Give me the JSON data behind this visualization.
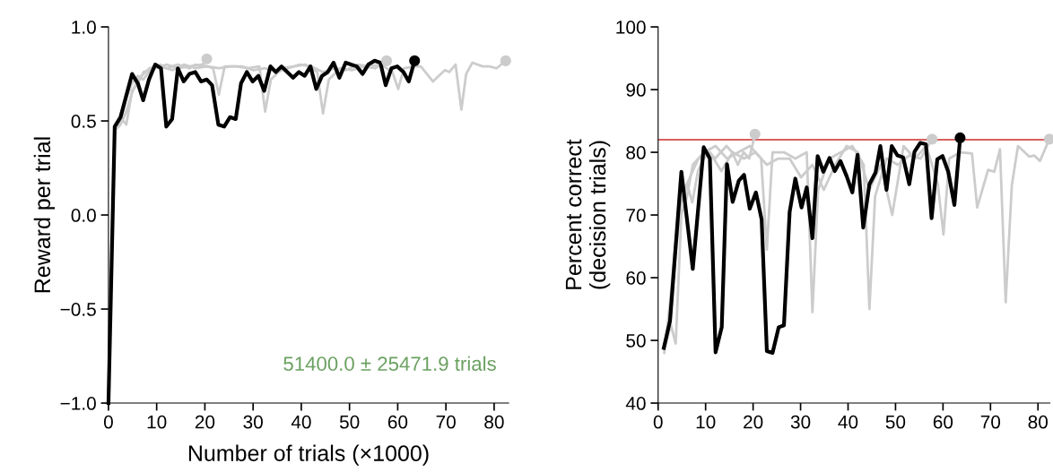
{
  "chart_data": [
    {
      "type": "line",
      "xlabel": "Number of trials (×1000)",
      "ylabel": "Reward per trial",
      "xlim": [
        0,
        83
      ],
      "ylim": [
        -1,
        1
      ],
      "xticks": [
        0,
        10,
        20,
        30,
        40,
        50,
        60,
        70,
        80
      ],
      "yticks": [
        {
          "value": -1,
          "label": "−1.0"
        },
        {
          "value": -0.5,
          "label": "−0.5"
        },
        {
          "value": 0,
          "label": "0.0"
        },
        {
          "value": 0.5,
          "label": "0.5"
        },
        {
          "value": 1,
          "label": "1.0"
        }
      ],
      "grid": false,
      "legend": false,
      "annotations": [
        "51400.0 ± 25471.9 trials"
      ],
      "series": [
        {
          "color": "#cccccc",
          "x": [
            1.3,
            2.5,
            3.7,
            4.9,
            6.1,
            7.2,
            8.4,
            9.6,
            10.8,
            12,
            13.2,
            14.4,
            15.6,
            16.8,
            18,
            19.2,
            20.4
          ],
          "values": [
            0.46,
            0.5,
            0.62,
            0.7,
            0.74,
            0.72,
            0.76,
            0.78,
            0.8,
            0.78,
            0.79,
            0.8,
            0.79,
            0.78,
            0.8,
            0.79,
            0.83
          ]
        },
        {
          "color": "#cccccc",
          "x": [
            1.3,
            2.5,
            3.7,
            4.9,
            6.1,
            7.3,
            9.7,
            12.1,
            14.5,
            16.9,
            19.3,
            21.7,
            22.9,
            24.1,
            26.5,
            28.9,
            31.3,
            32.5,
            33.7,
            36.1,
            38.5,
            40.9,
            43.3,
            44.5,
            45.7,
            48.1,
            50.5,
            52.9,
            55.3,
            57.7
          ],
          "values": [
            0.47,
            0.52,
            0.48,
            0.66,
            0.7,
            0.76,
            0.78,
            0.8,
            0.78,
            0.79,
            0.8,
            0.78,
            0.64,
            0.79,
            0.79,
            0.78,
            0.79,
            0.55,
            0.72,
            0.78,
            0.79,
            0.8,
            0.76,
            0.54,
            0.72,
            0.78,
            0.77,
            0.79,
            0.78,
            0.82
          ]
        },
        {
          "color": "#cccccc",
          "x": [
            1.3,
            2.5,
            3.7,
            4.9,
            6.1,
            8.5,
            10.9,
            13.3,
            15.7,
            18.1,
            20.5,
            22.9,
            25.3,
            27.7,
            30.1,
            32.5,
            34.9,
            37.3,
            39.7,
            42.1,
            44.5,
            46.9,
            49.3,
            51.7,
            54.1,
            56.5,
            58.9,
            60.1,
            61.3,
            63.7,
            64.8,
            67.3,
            69.8,
            70.7,
            72.0,
            73.2,
            74.2,
            75.5,
            77.6,
            79.0,
            80.5,
            82.4
          ],
          "values": [
            0.45,
            0.48,
            0.55,
            0.65,
            0.72,
            0.78,
            0.79,
            0.77,
            0.8,
            0.78,
            0.79,
            0.78,
            0.79,
            0.79,
            0.77,
            0.78,
            0.76,
            0.78,
            0.8,
            0.79,
            0.76,
            0.78,
            0.77,
            0.8,
            0.79,
            0.8,
            0.76,
            0.67,
            0.78,
            0.79,
            0.79,
            0.71,
            0.77,
            0.76,
            0.8,
            0.56,
            0.75,
            0.81,
            0.79,
            0.79,
            0.78,
            0.82
          ]
        },
        {
          "color": "#000000",
          "x": [
            0,
            1.3,
            2.5,
            4.9,
            6.1,
            7.2,
            8.4,
            9.7,
            10.9,
            12.0,
            13.2,
            14.4,
            15.6,
            16.8,
            18.0,
            19.2,
            20.4,
            21.5,
            22.8,
            24.0,
            25.2,
            26.4,
            27.5,
            28.7,
            29.9,
            31.1,
            32.3,
            33.6,
            34.7,
            35.9,
            37.1,
            38.3,
            39.5,
            40.7,
            41.9,
            43.1,
            44.3,
            45.5,
            46.7,
            47.9,
            49.2,
            50.3,
            51.5,
            52.7,
            53.9,
            55.2,
            56.4,
            57.5,
            58.7,
            59.9,
            61.2,
            62.3,
            63.5
          ],
          "values": [
            -1,
            0.47,
            0.52,
            0.75,
            0.7,
            0.61,
            0.72,
            0.8,
            0.78,
            0.47,
            0.51,
            0.78,
            0.71,
            0.75,
            0.76,
            0.71,
            0.72,
            0.69,
            0.48,
            0.47,
            0.52,
            0.51,
            0.7,
            0.76,
            0.71,
            0.74,
            0.66,
            0.79,
            0.76,
            0.79,
            0.76,
            0.73,
            0.76,
            0.74,
            0.79,
            0.67,
            0.74,
            0.76,
            0.81,
            0.73,
            0.81,
            0.8,
            0.79,
            0.75,
            0.8,
            0.82,
            0.81,
            0.69,
            0.78,
            0.79,
            0.76,
            0.71,
            0.82
          ]
        },
        {
          "type": "scatter",
          "color": "#cccccc",
          "x": [
            20.4,
            57.7,
            82.4
          ],
          "values": [
            0.83,
            0.82,
            0.82
          ]
        },
        {
          "type": "scatter",
          "color": "#000000",
          "x": [
            63.5
          ],
          "values": [
            0.82
          ]
        }
      ]
    },
    {
      "type": "line",
      "ylabel": "Percent correct\n(decision trials)",
      "xlim": [
        0,
        82.5
      ],
      "ylim": [
        40,
        100
      ],
      "xticks": [
        0,
        10,
        20,
        30,
        40,
        50,
        60,
        70,
        80
      ],
      "yticks": [
        40,
        50,
        60,
        70,
        80,
        90,
        100
      ],
      "grid": false,
      "legend": false,
      "ref_lines": [
        {
          "axis": "y",
          "value": 82,
          "color": "#d9605f"
        }
      ],
      "series": [
        {
          "color": "#cccccc",
          "x": [
            1.3,
            2.5,
            3.7,
            4.9,
            6.1,
            7.2,
            8.4,
            9.6,
            10.8,
            12,
            13.2,
            14.4,
            15.6,
            16.8,
            18,
            19.2,
            20.4
          ],
          "values": [
            48.5,
            52,
            64,
            72,
            75,
            72,
            77,
            79,
            80,
            79,
            80,
            81,
            80,
            78,
            80,
            79,
            82.9
          ]
        },
        {
          "color": "#cccccc",
          "x": [
            1.3,
            2.5,
            3.7,
            4.9,
            6.1,
            7.3,
            9.7,
            12.1,
            14.5,
            16.9,
            19.3,
            21.7,
            22.9,
            24.1,
            26.5,
            28.9,
            31.3,
            32.5,
            33.7,
            36.1,
            38.5,
            40.9,
            43.3,
            44.5,
            45.7,
            48.1,
            50.5,
            52.9,
            55.3,
            57.7
          ],
          "values": [
            49,
            53,
            49.5,
            70,
            73,
            78,
            80,
            81,
            79,
            80,
            81,
            79,
            64.5,
            80,
            80,
            79,
            80,
            54.5,
            74,
            79,
            80,
            81,
            78,
            55,
            73,
            79,
            78,
            79.5,
            79,
            82.1
          ]
        },
        {
          "color": "#cccccc",
          "x": [
            1.3,
            2.5,
            3.7,
            4.9,
            6.1,
            8.5,
            10.9,
            13.3,
            15.7,
            18.1,
            20.5,
            22.9,
            25.3,
            27.7,
            30.1,
            32.5,
            34.9,
            37.3,
            39.7,
            42.1,
            44.5,
            46.9,
            49.3,
            51.7,
            54.1,
            56.5,
            58.9,
            60.1,
            61.3,
            63.7,
            66.1,
            67.2,
            69.5,
            70.8,
            72.0,
            73.2,
            74.5,
            75.8,
            78.2,
            79.2,
            80.4,
            82.4
          ],
          "values": [
            48,
            56,
            66,
            72,
            75,
            79,
            80,
            77,
            80,
            79,
            80,
            78,
            79,
            79,
            76,
            78,
            74,
            78,
            81,
            80,
            74,
            78,
            70,
            81,
            79,
            81,
            75,
            66.9,
            79,
            80,
            79.8,
            71.2,
            77.2,
            76.9,
            80.5,
            56.1,
            74.8,
            81.0,
            79.3,
            79.5,
            78.6,
            82.1
          ]
        },
        {
          "color": "#000000",
          "x": [
            1.2,
            2.5,
            4.9,
            7.3,
            9.6,
            10.9,
            12.1,
            13.4,
            14.5,
            15.7,
            17.0,
            18.1,
            19.3,
            20.6,
            21.8,
            22.9,
            24.1,
            25.4,
            26.5,
            27.7,
            28.9,
            30.2,
            31.3,
            32.5,
            33.6,
            34.8,
            36.1,
            37.2,
            38.4,
            39.7,
            40.9,
            42.0,
            43.2,
            44.5,
            45.8,
            46.8,
            48.1,
            49.2,
            50.4,
            51.6,
            52.9,
            54.0,
            55.2,
            56.4,
            57.6,
            58.8,
            59.9,
            61.1,
            62.4,
            63.6
          ],
          "values": [
            48.8,
            53.1,
            76.9,
            61.4,
            80.8,
            79.0,
            48.1,
            52.1,
            78.1,
            72.1,
            75.5,
            76.4,
            71.0,
            73.6,
            69.3,
            48.3,
            48.0,
            52.1,
            52.4,
            70.5,
            75.8,
            71.2,
            74.4,
            66.3,
            79.4,
            76.9,
            79.1,
            77.0,
            78.6,
            76.2,
            73.6,
            79.6,
            68.0,
            74.9,
            76.8,
            81.0,
            74.0,
            81.0,
            79.5,
            79.2,
            74.9,
            80.1,
            81.5,
            81.3,
            69.5,
            78.9,
            79.4,
            76.9,
            71.6,
            82.3
          ]
        },
        {
          "type": "scatter",
          "color": "#cccccc",
          "x": [
            20.4,
            57.7,
            82.4
          ],
          "values": [
            82.9,
            82.1,
            82.1
          ]
        },
        {
          "type": "scatter",
          "color": "#000000",
          "x": [
            63.6
          ],
          "values": [
            82.3
          ]
        }
      ]
    }
  ]
}
